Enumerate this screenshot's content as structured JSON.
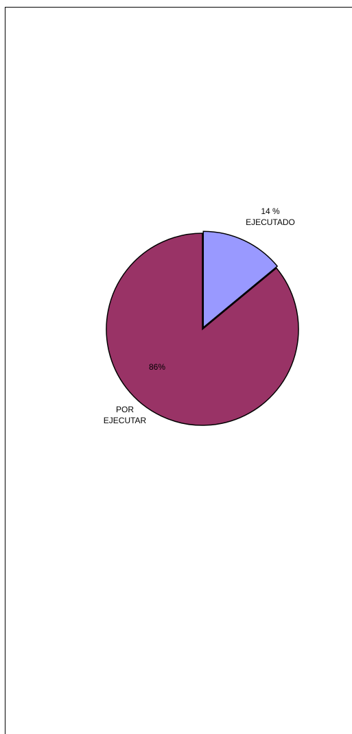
{
  "chart_data": {
    "type": "pie",
    "title": "",
    "slices": [
      {
        "key": "ejecutado",
        "value": 14,
        "value_label": "14 %",
        "category_label": "EJECUTADO",
        "color": "#9999FF",
        "exploded": true
      },
      {
        "key": "por-ejecutar",
        "value": 86,
        "value_label": "86%",
        "category_label_lines": [
          "POR",
          "EJECUTAR"
        ],
        "color": "#993366",
        "exploded": false
      }
    ],
    "legend": "none"
  }
}
